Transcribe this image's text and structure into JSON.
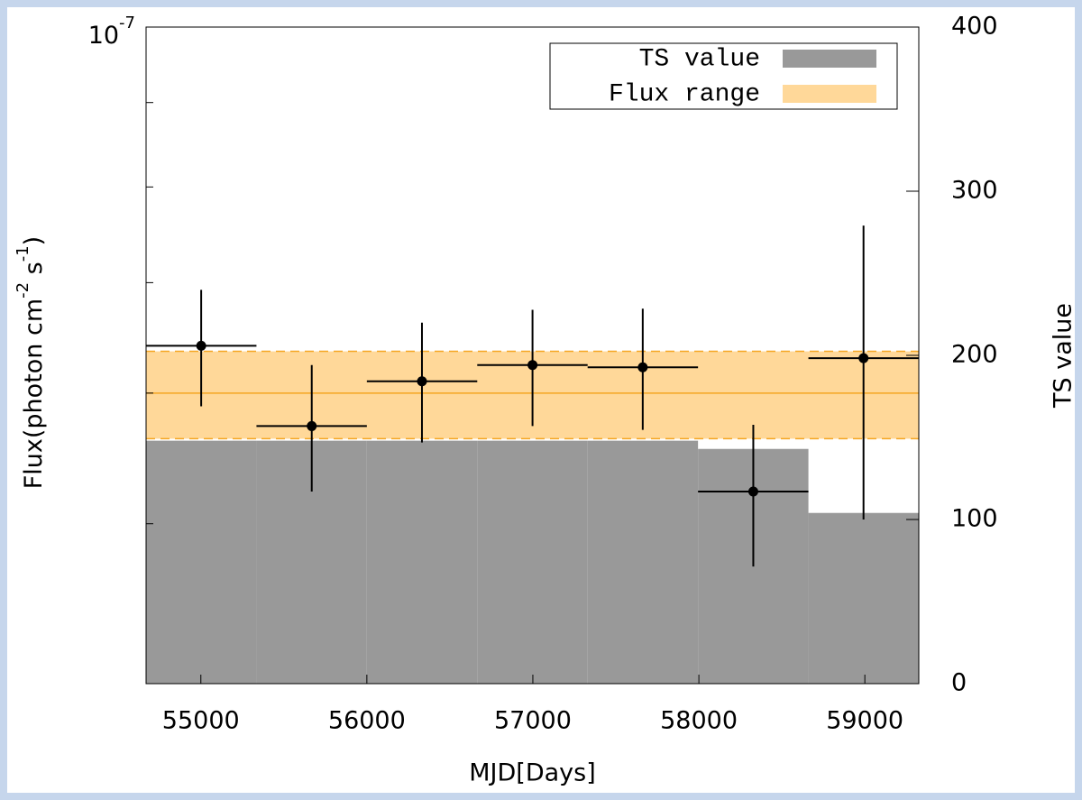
{
  "chart_data": {
    "type": "lightcurve",
    "xlabel": "MJD[Days]",
    "ylabel": [
      "Flux(photon cm",
      "-2",
      " s",
      "-1",
      ")"
    ],
    "y2label": "TS value",
    "xlim": [
      54670,
      59325
    ],
    "xticks": [
      55000,
      56000,
      57000,
      58000,
      59000
    ],
    "ylim": [
      4e-08,
      1e-07
    ],
    "log_y": true,
    "yticks": [
      {
        "value": 1e-07,
        "label": "10",
        "exponent": "-7"
      }
    ],
    "yminorticks": [
      9e-08,
      8e-08,
      7e-08,
      6e-08,
      5e-08
    ],
    "y2lim": [
      0,
      400
    ],
    "y2ticks": [
      0,
      100,
      200,
      300,
      400
    ],
    "legend": "upper right",
    "bins": [
      54670,
      55335,
      56000,
      56665,
      57330,
      57995,
      58660,
      59325
    ],
    "series": [
      {
        "name": "TS value",
        "type": "histogram",
        "axis": "y2",
        "color": "#999999",
        "values": [
          148,
          148,
          148,
          148,
          148,
          143,
          104
        ]
      },
      {
        "name": "Flux range",
        "type": "band",
        "color": "#ffd899",
        "line_color": "#f5a623",
        "low": 5.63e-08,
        "mean": 6e-08,
        "high": 6.36e-08
      }
    ],
    "points": {
      "color": "#000000",
      "x": [
        55002,
        55668,
        56332,
        56998,
        57662,
        58328,
        58992
      ],
      "values": [
        6.41e-08,
        5.73e-08,
        6.1e-08,
        6.24e-08,
        6.22e-08,
        5.23e-08,
        6.3e-08
      ],
      "ylow": [
        5.89e-08,
        5.23e-08,
        5.6e-08,
        5.73e-08,
        5.7e-08,
        4.71e-08,
        5.03e-08
      ],
      "yhigh": [
        6.93e-08,
        6.24e-08,
        6.62e-08,
        6.74e-08,
        6.75e-08,
        5.74e-08,
        7.58e-08
      ]
    }
  }
}
